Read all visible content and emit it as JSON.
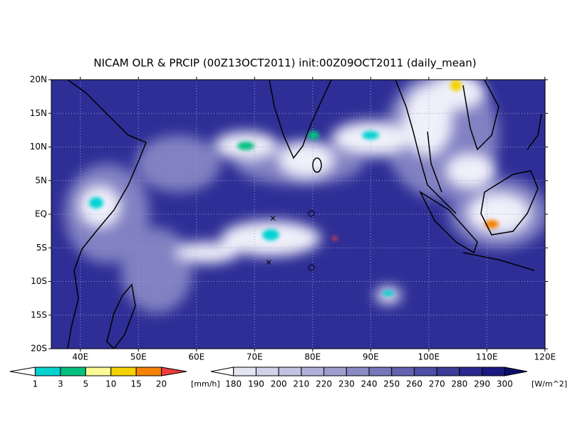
{
  "title": "NICAM OLR & PRCIP (00Z13OCT2011) init:00Z09OCT2011 (daily_mean)",
  "map": {
    "lat_ticks": [
      "20N",
      "15N",
      "10N",
      "5N",
      "EQ",
      "5S",
      "10S",
      "15S",
      "20S"
    ],
    "lon_ticks": [
      "40E",
      "50E",
      "60E",
      "70E",
      "80E",
      "90E",
      "100E",
      "110E",
      "120E"
    ]
  },
  "precip_legend": {
    "levels": [
      1,
      3,
      5,
      10,
      15,
      20
    ],
    "colors": [
      "#ffffff",
      "#00d2d2",
      "#00c080",
      "#fafa96",
      "#f5d200",
      "#f58200",
      "#f03c3c"
    ],
    "unit": "[mm/h]"
  },
  "olr_legend": {
    "levels": [
      180,
      190,
      200,
      210,
      220,
      230,
      240,
      250,
      260,
      270,
      280,
      290,
      300
    ],
    "colors": [
      "#ffffff",
      "#e4e4f2",
      "#d2d2ea",
      "#c2c2e2",
      "#b0b0d8",
      "#9e9ece",
      "#8a8ac4",
      "#7676ba",
      "#6262b0",
      "#4e4ea6",
      "#3c3c9a",
      "#2a2a8e",
      "#1a1a80",
      "#0c0c6c"
    ],
    "unit": "[W/m^2]"
  }
}
